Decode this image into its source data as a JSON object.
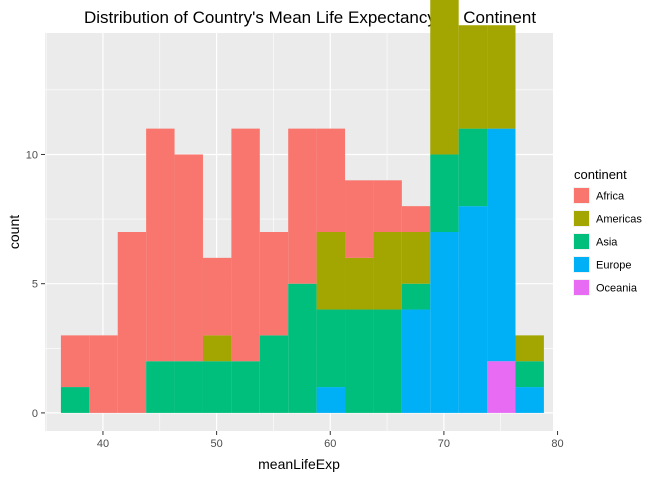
{
  "chart_data": {
    "type": "bar",
    "subtype": "stacked-histogram",
    "title": "Distribution of Country's Mean Life Expectancy by Continent",
    "xlabel": "meanLifeExp",
    "ylabel": "count",
    "xlim": [
      34.9,
      79.6
    ],
    "ylim": [
      -0.7,
      14.7
    ],
    "x_ticks": [
      40,
      50,
      60,
      70,
      80
    ],
    "y_ticks": [
      0,
      5,
      10
    ],
    "grid": true,
    "legend": {
      "title": "continent",
      "position": "right",
      "entries": [
        "Africa",
        "Americas",
        "Asia",
        "Europe",
        "Oceania"
      ]
    },
    "bin_edges": [
      36.3,
      38.8,
      41.3,
      43.8,
      46.3,
      48.8,
      51.3,
      53.8,
      56.3,
      58.8,
      61.3,
      63.8,
      66.3,
      68.8,
      71.3,
      73.8,
      76.3,
      78.8
    ],
    "series": [
      {
        "name": "Africa",
        "color": "#F8766D",
        "values": [
          2,
          3,
          7,
          9,
          8,
          3,
          9,
          4,
          6,
          4,
          3,
          2,
          1,
          1,
          0,
          0,
          0
        ]
      },
      {
        "name": "Americas",
        "color": "#A3A500",
        "values": [
          0,
          0,
          0,
          0,
          0,
          1,
          0,
          0,
          0,
          3,
          2,
          3,
          2,
          6,
          4,
          4,
          1
        ]
      },
      {
        "name": "Asia",
        "color": "#00BF7D",
        "values": [
          1,
          0,
          0,
          2,
          2,
          2,
          2,
          3,
          5,
          3,
          4,
          4,
          1,
          3,
          3,
          0,
          1
        ]
      },
      {
        "name": "Europe",
        "color": "#00B0F6",
        "values": [
          0,
          0,
          0,
          0,
          0,
          0,
          0,
          0,
          0,
          1,
          0,
          0,
          4,
          7,
          8,
          9,
          1
        ]
      },
      {
        "name": "Oceania",
        "color": "#E76BF3",
        "values": [
          0,
          0,
          0,
          0,
          0,
          0,
          0,
          0,
          0,
          0,
          0,
          0,
          0,
          0,
          0,
          2,
          0
        ]
      }
    ]
  }
}
